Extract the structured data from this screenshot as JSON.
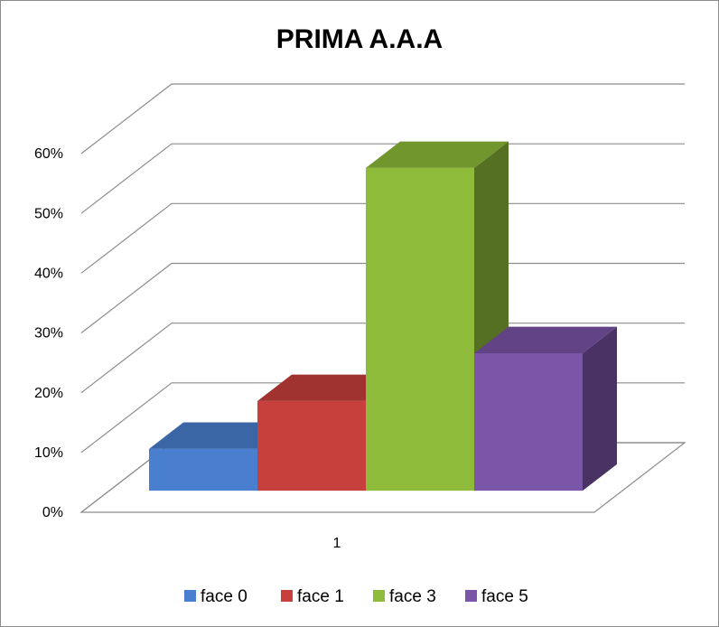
{
  "chart_data": {
    "type": "bar3d",
    "title": "PRIMA A.A.A",
    "categories": [
      "1"
    ],
    "series": [
      {
        "name": "face 0",
        "color": "#4a7fd0",
        "values": [
          7
        ]
      },
      {
        "name": "face 1",
        "color": "#c8403c",
        "values": [
          15
        ]
      },
      {
        "name": "face 3",
        "color": "#8fbb3a",
        "values": [
          54
        ]
      },
      {
        "name": "face 5",
        "color": "#7a55a8",
        "values": [
          23
        ]
      }
    ],
    "ylim": [
      0,
      60
    ],
    "yticks": [
      {
        "value": 0,
        "label": "0%"
      },
      {
        "value": 10,
        "label": "10%"
      },
      {
        "value": 20,
        "label": "20%"
      },
      {
        "value": 30,
        "label": "30%"
      },
      {
        "value": 40,
        "label": "40%"
      },
      {
        "value": 50,
        "label": "50%"
      },
      {
        "value": 60,
        "label": "60%"
      }
    ],
    "grid": true,
    "legend": "bottom"
  }
}
